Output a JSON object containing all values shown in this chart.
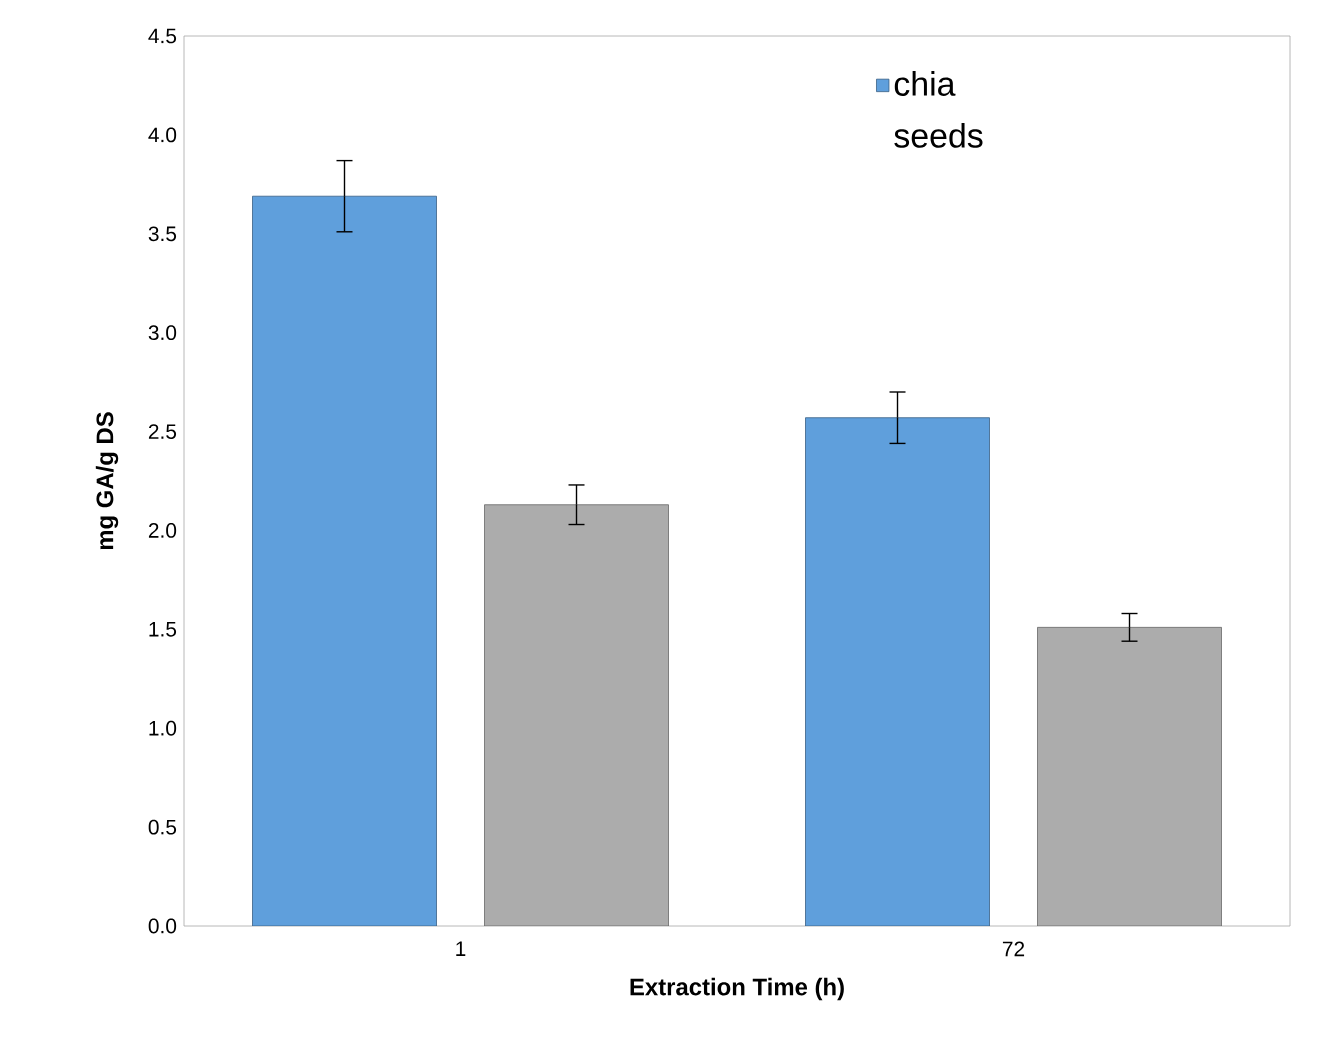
{
  "chart_data": {
    "type": "bar",
    "xlabel": "Extraction Time (h)",
    "ylabel": "mg  GA/g DS",
    "categories": [
      "1",
      "72"
    ],
    "series": [
      {
        "name": "chia seeds",
        "color": "#5f9fdc",
        "values": [
          3.69,
          2.57
        ],
        "errors": [
          0.18,
          0.13
        ]
      },
      {
        "color": "#acacac",
        "values": [
          2.13,
          1.51
        ],
        "errors": [
          0.1,
          0.07
        ]
      }
    ],
    "ylim": [
      0,
      4.5
    ],
    "yticks": [
      {
        "value": 0,
        "label": "0.0"
      },
      {
        "value": 0.5,
        "label": "0.5"
      },
      {
        "value": 1,
        "label": "1.0"
      },
      {
        "value": 1.5,
        "label": "1.5"
      },
      {
        "value": 2,
        "label": "2.0"
      },
      {
        "value": 2.5,
        "label": "2.5"
      },
      {
        "value": 3,
        "label": "3.0"
      },
      {
        "value": 3.5,
        "label": "3.5"
      },
      {
        "value": 4,
        "label": "4.0"
      },
      {
        "value": 4.5,
        "label": "4.5"
      }
    ],
    "legend": "top right"
  }
}
